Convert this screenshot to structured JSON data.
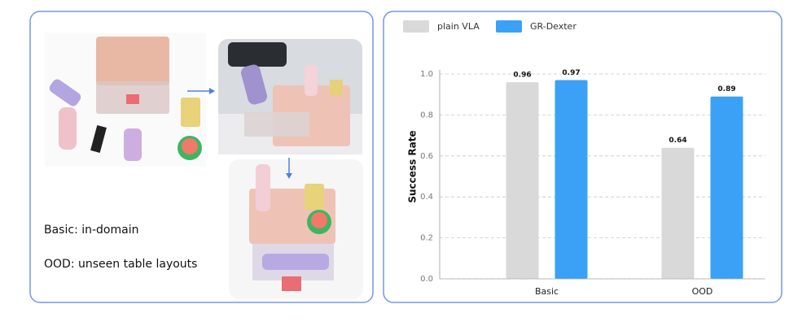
{
  "chart_data": {
    "type": "bar",
    "y_label": "Success Rate",
    "categories": [
      "Basic",
      "OOD"
    ],
    "series": [
      {
        "name": "plain VLA",
        "color": "#d9d9d9",
        "values": [
          0.96,
          0.64
        ]
      },
      {
        "name": "GR-Dexter",
        "color": "#3ba1f6",
        "values": [
          0.97,
          0.89
        ]
      }
    ],
    "ylim": [
      0,
      1
    ],
    "yticks": [
      {
        "value": 0,
        "label": "0.0"
      },
      0.2,
      0.4,
      0.6,
      0.8,
      {
        "value": 1,
        "label": "1.0"
      }
    ],
    "grid": true,
    "legend": "top-left"
  },
  "left_panel": {
    "notes": [
      "Basic: in-domain",
      "OOD: unseen table layouts"
    ]
  }
}
